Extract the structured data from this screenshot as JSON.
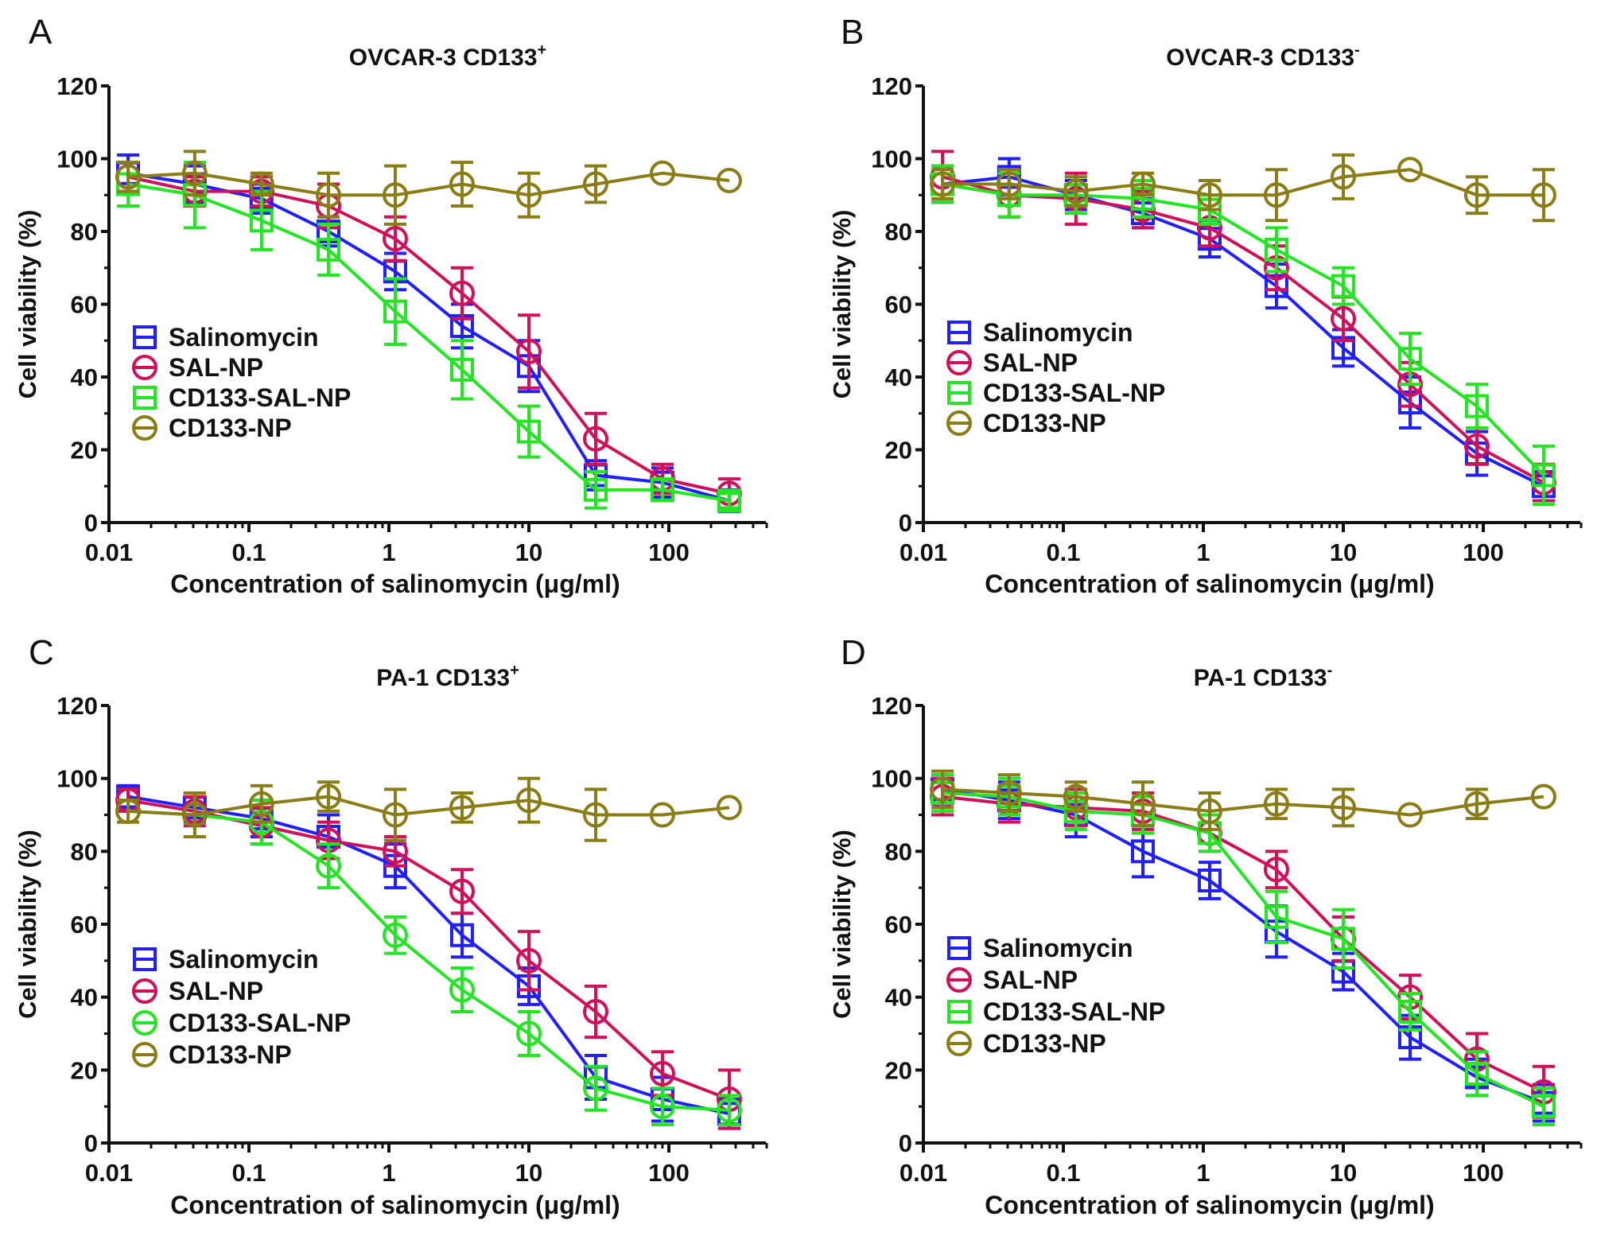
{
  "chart_data": [
    {
      "panel": "A",
      "type": "line",
      "title": "OVCAR-3 CD133",
      "title_superscript": "+",
      "xlabel": "Concentration of salinomycin (μg/ml)",
      "ylabel": "Cell viability (%)",
      "xscale": "log",
      "xlim": [
        0.01,
        500
      ],
      "ylim": [
        0,
        120
      ],
      "xticks": [
        "0.01",
        "0.1",
        "1",
        "10",
        "100"
      ],
      "yticks": [
        "0",
        "20",
        "40",
        "60",
        "80",
        "100",
        "120"
      ],
      "x": [
        0.0137,
        0.041,
        0.123,
        0.37,
        1.11,
        3.33,
        10,
        30,
        90,
        270
      ],
      "legend": "center-left",
      "grid": false,
      "series": [
        {
          "name": "Salinomycin",
          "color": "#1f1fff",
          "marker": "square",
          "values": [
            96,
            93,
            89,
            80,
            69,
            54,
            43,
            13,
            11,
            6
          ],
          "errors": [
            5,
            5,
            4,
            4,
            5,
            6,
            7,
            4,
            4,
            3
          ]
        },
        {
          "name": "SAL-NP",
          "color": "#d0105a",
          "marker": "circle",
          "values": [
            95,
            91,
            91,
            87,
            78,
            63,
            47,
            23,
            12,
            8
          ],
          "errors": [
            4,
            4,
            4,
            6,
            6,
            7,
            10,
            7,
            4,
            4
          ]
        },
        {
          "name": "CD133-SAL-NP",
          "color": "#22e622",
          "marker": "square",
          "values": [
            93,
            90,
            83,
            75,
            58,
            42,
            25,
            9,
            9,
            6
          ],
          "errors": [
            6,
            9,
            8,
            7,
            9,
            8,
            7,
            5,
            3,
            2
          ]
        },
        {
          "name": "CD133-NP",
          "color": "#8b7d16",
          "marker": "circle",
          "values": [
            95,
            96,
            93,
            90,
            90,
            93,
            90,
            93,
            96,
            94
          ],
          "errors": [
            4,
            6,
            3,
            6,
            8,
            6,
            6,
            5,
            0,
            0
          ]
        }
      ]
    },
    {
      "panel": "B",
      "type": "line",
      "title": "OVCAR-3 CD133",
      "title_superscript": "-",
      "xlabel": "Concentration of salinomycin (μg/ml)",
      "ylabel": "Cell viability (%)",
      "xscale": "log",
      "xlim": [
        0.01,
        500
      ],
      "ylim": [
        0,
        120
      ],
      "xticks": [
        "0.01",
        "0.1",
        "1",
        "10",
        "100"
      ],
      "yticks": [
        "0",
        "20",
        "40",
        "60",
        "80",
        "100",
        "120"
      ],
      "x": [
        0.0137,
        0.041,
        0.123,
        0.37,
        1.11,
        3.33,
        10,
        30,
        90,
        270
      ],
      "legend": "center-left",
      "grid": false,
      "series": [
        {
          "name": "Salinomycin",
          "color": "#1f1fff",
          "marker": "square",
          "values": [
            93,
            95,
            90,
            85,
            78,
            65,
            48,
            33,
            19,
            10
          ],
          "errors": [
            5,
            5,
            4,
            4,
            5,
            6,
            5,
            7,
            6,
            4
          ]
        },
        {
          "name": "SAL-NP",
          "color": "#d0105a",
          "marker": "circle",
          "values": [
            95,
            90,
            89,
            86,
            81,
            70,
            56,
            38,
            21,
            11
          ],
          "errors": [
            7,
            6,
            7,
            5,
            5,
            6,
            6,
            6,
            5,
            5
          ]
        },
        {
          "name": "CD133-SAL-NP",
          "color": "#22e622",
          "marker": "square",
          "values": [
            93,
            90,
            90,
            89,
            86,
            75,
            65,
            45,
            32,
            13
          ],
          "errors": [
            5,
            6,
            5,
            5,
            4,
            6,
            5,
            7,
            6,
            8
          ]
        },
        {
          "name": "CD133-NP",
          "color": "#8b7d16",
          "marker": "circle",
          "values": [
            93,
            93,
            91,
            93,
            90,
            90,
            95,
            97,
            90,
            90
          ],
          "errors": [
            4,
            4,
            4,
            3,
            4,
            7,
            6,
            0,
            5,
            7
          ]
        }
      ]
    },
    {
      "panel": "C",
      "type": "line",
      "title": "PA-1 CD133",
      "title_superscript": "+",
      "xlabel": "Concentration of salinomycin (μg/ml)",
      "ylabel": "Cell viability (%)",
      "xscale": "log",
      "xlim": [
        0.01,
        500
      ],
      "ylim": [
        0,
        120
      ],
      "xticks": [
        "0.01",
        "0.1",
        "1",
        "10",
        "100"
      ],
      "yticks": [
        "0",
        "20",
        "40",
        "60",
        "80",
        "100",
        "120"
      ],
      "x": [
        0.0137,
        0.041,
        0.123,
        0.37,
        1.11,
        3.33,
        10,
        30,
        90,
        270
      ],
      "legend": "center-left",
      "grid": false,
      "series": [
        {
          "name": "Salinomycin",
          "color": "#1f1fff",
          "marker": "square",
          "values": [
            95,
            92,
            89,
            84,
            76,
            57,
            43,
            18,
            12,
            8
          ],
          "errors": [
            3,
            4,
            5,
            6,
            6,
            6,
            5,
            6,
            6,
            4
          ]
        },
        {
          "name": "SAL-NP",
          "color": "#d0105a",
          "marker": "circle",
          "values": [
            94,
            91,
            87,
            83,
            80,
            69,
            50,
            36,
            19,
            12
          ],
          "errors": [
            3,
            4,
            5,
            5,
            4,
            6,
            8,
            7,
            6,
            8
          ]
        },
        {
          "name": "CD133-SAL-NP",
          "color": "#22e622",
          "marker": "circle",
          "values": [
            91,
            90,
            88,
            76,
            57,
            42,
            30,
            15,
            10,
            9
          ],
          "errors": [
            3,
            6,
            6,
            6,
            5,
            6,
            6,
            6,
            5,
            4
          ]
        },
        {
          "name": "CD133-NP",
          "color": "#8b7d16",
          "marker": "circle",
          "values": [
            91,
            90,
            93,
            95,
            90,
            92,
            94,
            90,
            90,
            92
          ],
          "errors": [
            3,
            6,
            5,
            4,
            7,
            4,
            6,
            7,
            0,
            0
          ]
        }
      ]
    },
    {
      "panel": "D",
      "type": "line",
      "title": "PA-1 CD133",
      "title_superscript": "-",
      "xlabel": "Concentration of salinomycin (μg/ml)",
      "ylabel": "Cell viability (%)",
      "xscale": "log",
      "xlim": [
        0.01,
        500
      ],
      "ylim": [
        0,
        120
      ],
      "xticks": [
        "0.01",
        "0.1",
        "1",
        "10",
        "100"
      ],
      "yticks": [
        "0",
        "20",
        "40",
        "60",
        "80",
        "100",
        "120"
      ],
      "x": [
        0.0137,
        0.041,
        0.123,
        0.37,
        1.11,
        3.33,
        10,
        30,
        90,
        270
      ],
      "legend": "center-left",
      "grid": false,
      "series": [
        {
          "name": "Salinomycin",
          "color": "#1f1fff",
          "marker": "square",
          "values": [
            97,
            94,
            90,
            80,
            72,
            58,
            47,
            29,
            18,
            11
          ],
          "errors": [
            4,
            5,
            6,
            7,
            5,
            7,
            5,
            6,
            5,
            5
          ]
        },
        {
          "name": "SAL-NP",
          "color": "#d0105a",
          "marker": "circle",
          "values": [
            95,
            93,
            92,
            91,
            85,
            75,
            56,
            40,
            23,
            14
          ],
          "errors": [
            5,
            5,
            5,
            5,
            5,
            5,
            6,
            6,
            7,
            7
          ]
        },
        {
          "name": "CD133-SAL-NP",
          "color": "#22e622",
          "marker": "square",
          "values": [
            96,
            95,
            91,
            90,
            85,
            62,
            56,
            36,
            19,
            10
          ],
          "errors": [
            5,
            5,
            5,
            5,
            5,
            7,
            8,
            5,
            6,
            5
          ]
        },
        {
          "name": "CD133-NP",
          "color": "#8b7d16",
          "marker": "circle",
          "values": [
            97,
            96,
            95,
            93,
            91,
            93,
            92,
            90,
            93,
            95
          ],
          "errors": [
            5,
            5,
            4,
            6,
            5,
            4,
            5,
            0,
            4,
            0
          ]
        }
      ]
    }
  ]
}
